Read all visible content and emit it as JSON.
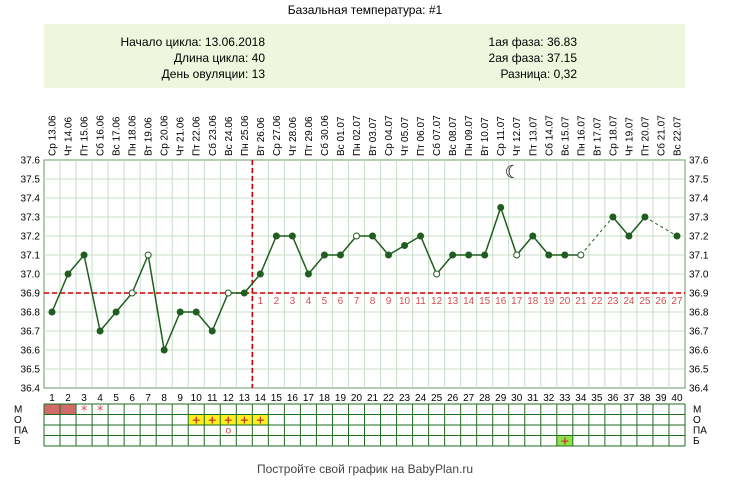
{
  "page": {
    "title": "Базальная температура: #1",
    "footer": "Постройте свой график на BabyPlan.ru"
  },
  "info": {
    "cycle_start": "Начало цикла: 13.06.2018",
    "cycle_length": "Длина цикла: 40",
    "ovulation_day": "День овуляции: 13",
    "phase1": "1ая фаза: 36.83",
    "phase2": "2ая фаза: 37.15",
    "difference": "Разница: 0,32"
  },
  "chart_data": {
    "type": "line",
    "y_ticks": [
      "37.6",
      "37.5",
      "37.4",
      "37.3",
      "37.2",
      "37.1",
      "37.0",
      "36.9",
      "36.8",
      "36.7",
      "36.6",
      "36.5",
      "36.4"
    ],
    "ylim": [
      36.4,
      37.6
    ],
    "grid": true,
    "days": [
      1,
      2,
      3,
      4,
      5,
      6,
      7,
      8,
      9,
      10,
      11,
      12,
      13,
      14,
      15,
      16,
      17,
      18,
      19,
      20,
      21,
      22,
      23,
      24,
      25,
      26,
      27,
      28,
      29,
      30,
      31,
      32,
      33,
      34,
      35,
      36,
      37,
      38,
      39,
      40
    ],
    "dates": [
      "Ср 13.06",
      "Чт 14.06",
      "Пт 15.06",
      "Сб 16.06",
      "Вс 17.06",
      "Пн 18.06",
      "Вт 19.06",
      "Ср 20.06",
      "Чт 21.06",
      "Пт 22.06",
      "Сб 23.06",
      "Вс 24.06",
      "Пн 25.06",
      "Вт 26.06",
      "Ср 27.06",
      "Чт 28.06",
      "Пт 29.06",
      "Сб 30.06",
      "Вс 01.07",
      "Пн 02.07",
      "Вт 03.07",
      "Ср 04.07",
      "Чт 05.07",
      "Пт 06.07",
      "Сб 07.07",
      "Вс 08.07",
      "Пн 09.07",
      "Вт 10.07",
      "Ср 11.07",
      "Чт 12.07",
      "Пт 13.07",
      "Сб 14.07",
      "Вс 15.07",
      "Пн 16.07",
      "Вт 17.07",
      "Ср 18.07",
      "Чт 19.07",
      "Пт 20.07",
      "Сб 21.07",
      "Вс 22.07"
    ],
    "temperatures": [
      36.8,
      37.0,
      37.1,
      36.7,
      36.8,
      36.9,
      37.1,
      36.6,
      36.8,
      36.8,
      36.7,
      36.9,
      36.9,
      37.0,
      37.2,
      37.2,
      37.0,
      37.1,
      37.1,
      37.2,
      37.2,
      37.1,
      37.15,
      37.2,
      37.0,
      37.1,
      37.1,
      37.1,
      37.35,
      37.1,
      37.2,
      37.1,
      37.1,
      37.1,
      null,
      37.3,
      37.2,
      37.3,
      null,
      37.2
    ],
    "open_points": [
      6,
      7,
      12,
      20,
      25,
      30,
      34
    ],
    "coverline": 36.9,
    "ovulation_day": 13,
    "luteal_labels": [
      "1",
      "2",
      "3",
      "4",
      "5",
      "6",
      "7",
      "8",
      "9",
      "10",
      "11",
      "12",
      "13",
      "14",
      "15",
      "16",
      "17",
      "18",
      "19",
      "20",
      "21",
      "22",
      "23",
      "24",
      "25",
      "26",
      "27"
    ],
    "moon_day": 29,
    "moon_symbol": "☾",
    "line_color": "#1e5e1e",
    "dashed_color": "#cc0000"
  },
  "bottom_grid": {
    "row_labels": [
      "М",
      "О",
      "ПА",
      "Б"
    ],
    "menstruation_days": [
      1,
      2
    ],
    "menstruation_marks": [
      {
        "day": 3,
        "symbol": "*"
      },
      {
        "day": 4,
        "symbol": "*"
      }
    ],
    "discharge_days": [
      10,
      11,
      12,
      13,
      14
    ],
    "discharge_symbol": "+",
    "pa_marks": [
      {
        "day": 12,
        "symbol": "о"
      }
    ],
    "b_marks": [
      {
        "day": 33,
        "symbol": "+"
      }
    ],
    "colors": {
      "menstruation": "#d26a6a",
      "discharge": "#ffee22",
      "b": "#8ee24a",
      "grid": "#1e6e1e",
      "mark": "#d05050"
    }
  }
}
